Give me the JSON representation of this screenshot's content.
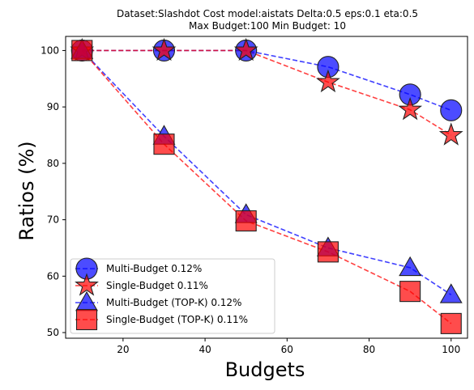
{
  "chart_data": {
    "type": "line",
    "title": "Dataset:Slashdot Cost model:aistats Delta:0.5 eps:0.1 eta:0.5",
    "subtitle": "Max Budget:100 Min Budget: 10",
    "xlabel": "Budgets",
    "ylabel": "Ratios (%)",
    "xlim": [
      6,
      104
    ],
    "ylim": [
      49,
      102.5
    ],
    "xticks": [
      20,
      40,
      60,
      80,
      100
    ],
    "yticks": [
      50,
      60,
      70,
      80,
      90,
      100
    ],
    "grid": false,
    "legend_position": "lower-left",
    "series": [
      {
        "name": "Multi-Budget 0.12%",
        "color": "#0000ff",
        "marker": "circle",
        "x": [
          10,
          30,
          50,
          70,
          90,
          100
        ],
        "y": [
          100,
          100,
          100,
          97.1,
          92.2,
          89.4
        ]
      },
      {
        "name": "Single-Budget 0.11%",
        "color": "#ff0000",
        "marker": "star",
        "x": [
          10,
          30,
          50,
          70,
          90,
          100
        ],
        "y": [
          100,
          100,
          100,
          94.4,
          89.5,
          85.0
        ]
      },
      {
        "name": "Multi-Budget (TOP-K) 0.12%",
        "color": "#0000ff",
        "marker": "triangle",
        "x": [
          10,
          30,
          50,
          70,
          90,
          100
        ],
        "y": [
          100,
          84.8,
          70.9,
          65.0,
          61.5,
          56.7
        ]
      },
      {
        "name": "Single-Budget (TOP-K) 0.11%",
        "color": "#ff0000",
        "marker": "square",
        "x": [
          10,
          30,
          50,
          70,
          90,
          100
        ],
        "y": [
          100,
          83.4,
          69.8,
          64.3,
          57.3,
          51.6
        ]
      }
    ]
  }
}
